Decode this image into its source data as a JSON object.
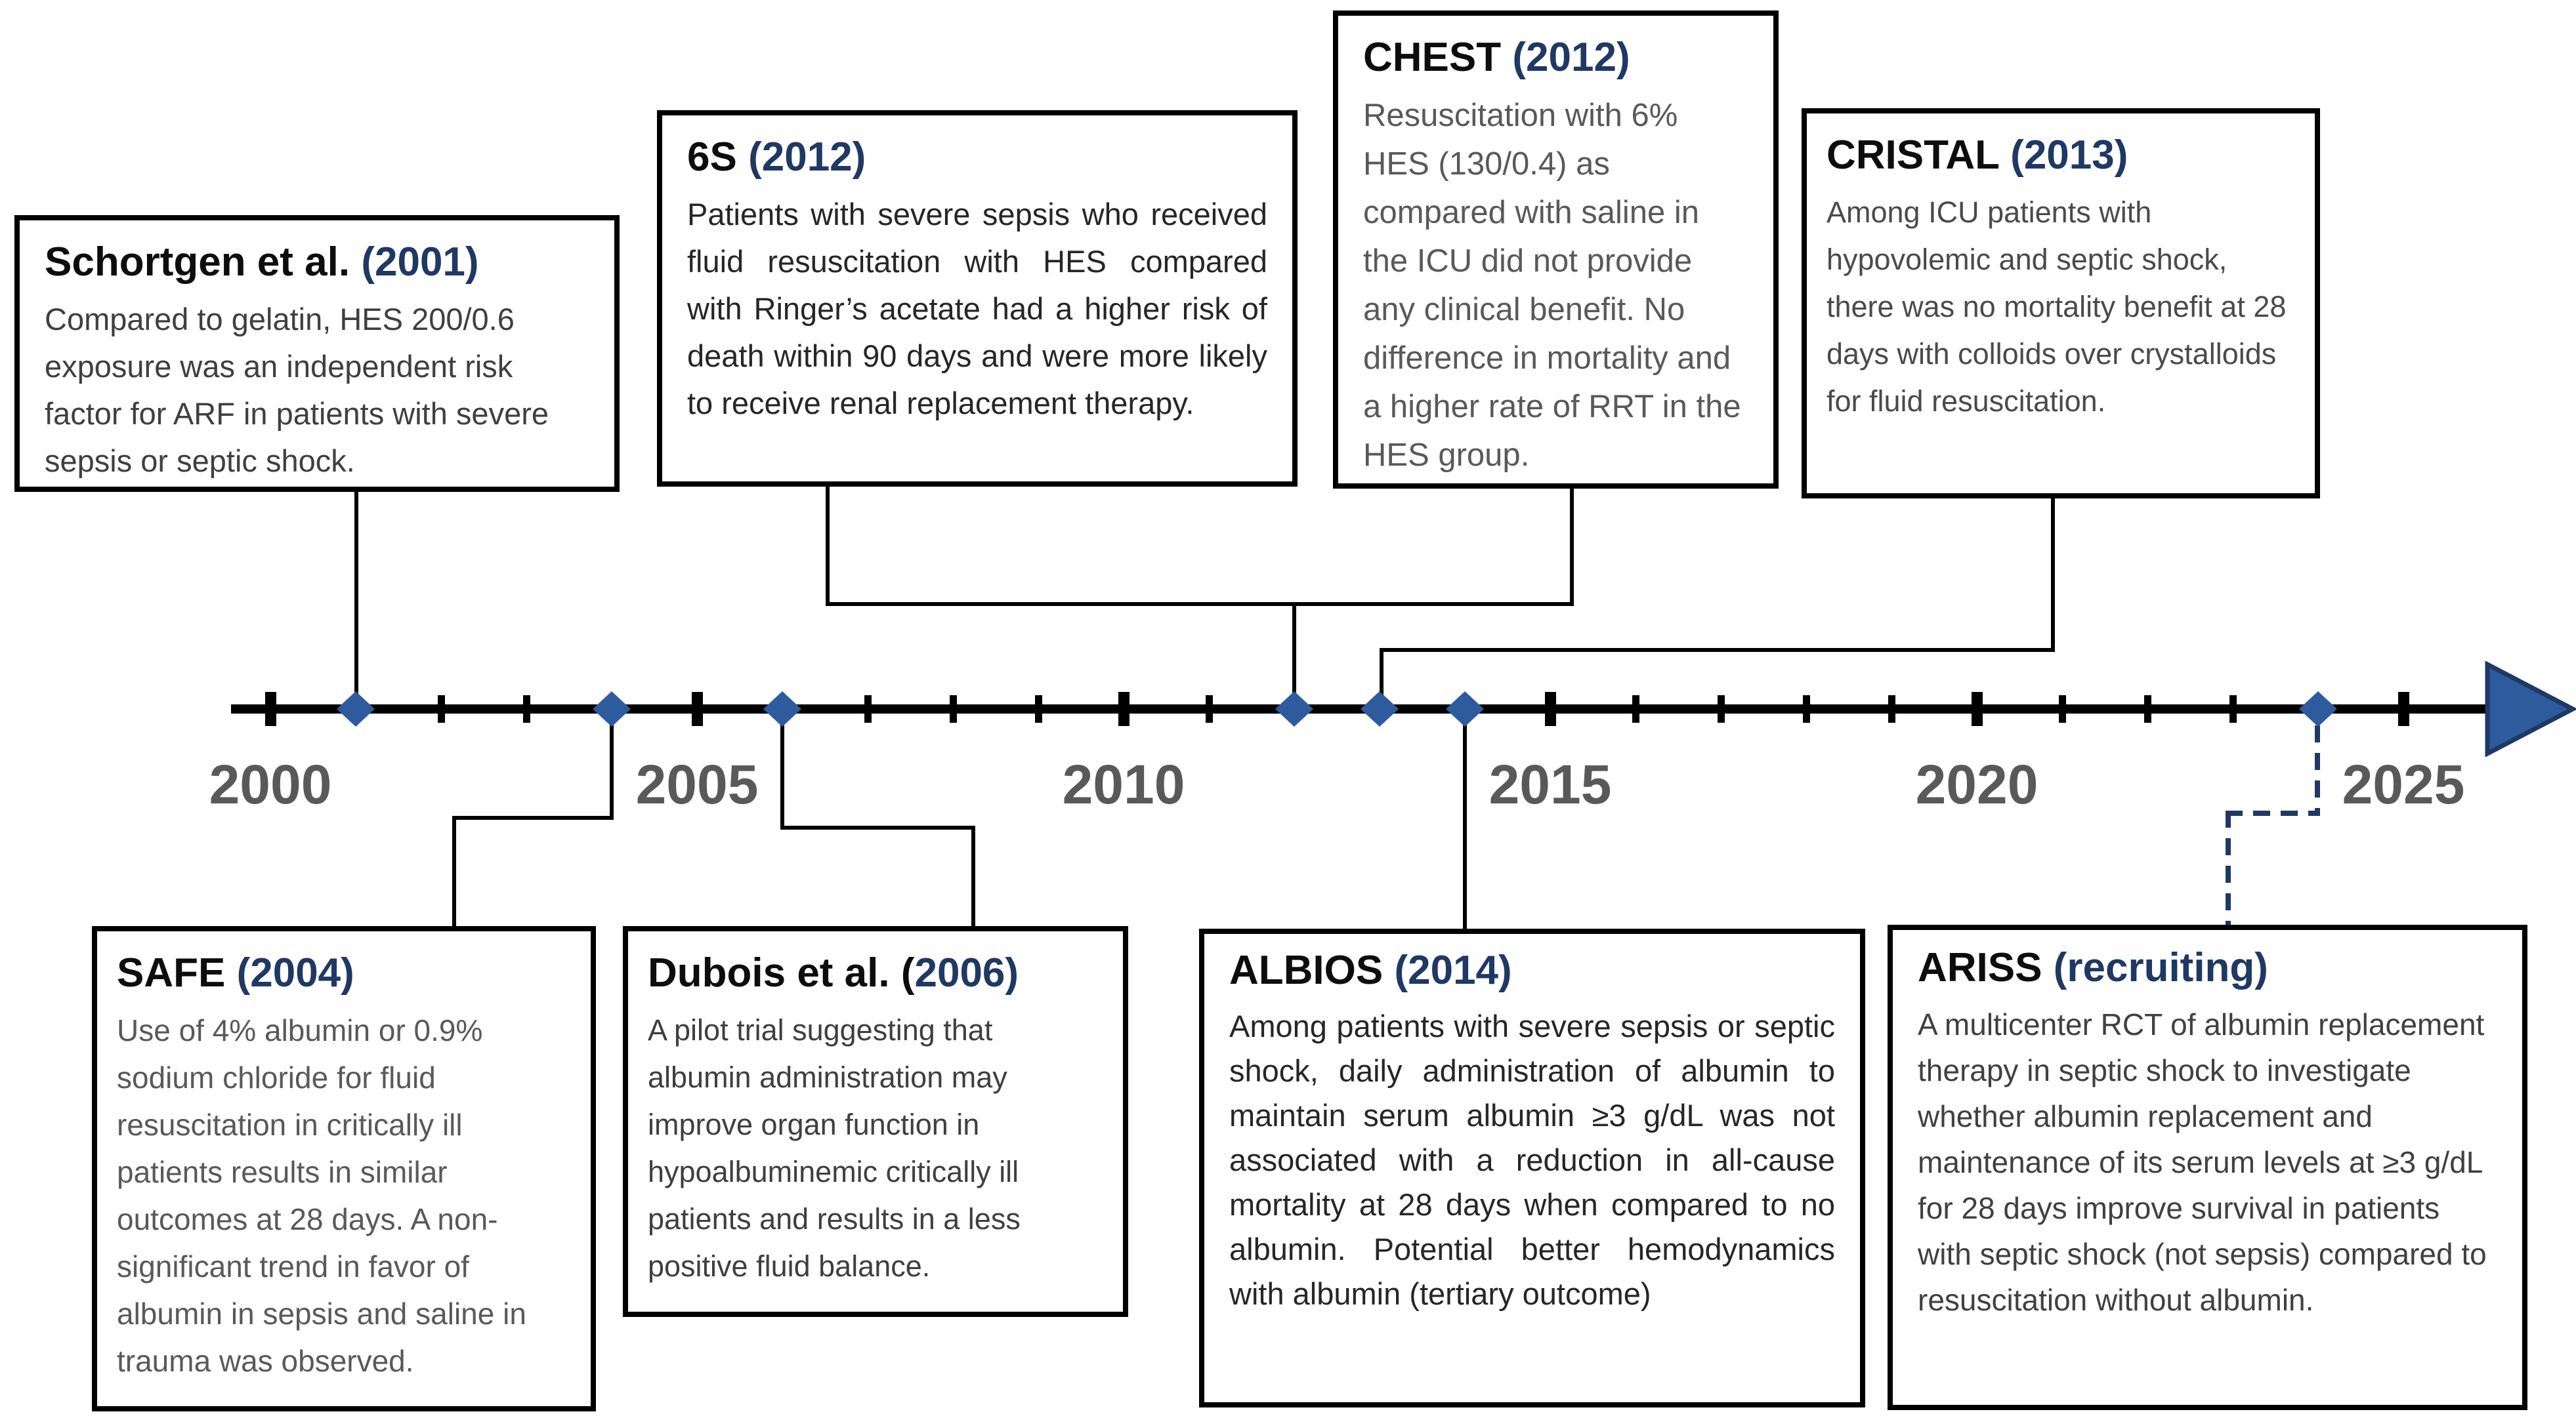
{
  "colors": {
    "navy": "#1f3864",
    "marker": "#2e5b9e",
    "axis": "#000000",
    "yeargray": "#595959"
  },
  "timeline": {
    "start_year": 2000,
    "end_year": 2025,
    "year_labels": [
      "2000",
      "2005",
      "2010",
      "2015",
      "2020",
      "2025"
    ],
    "marker_years": [
      2001,
      2004,
      2006,
      2012,
      2013,
      2014,
      2024
    ],
    "arrow_icon": "right-arrow"
  },
  "events": [
    {
      "id": "schortgen",
      "title": "Schortgen et al.",
      "year_label": "(2001)",
      "marker_year": 2001,
      "placement": "above",
      "body": "Compared to gelatin, HES 200/0.6 exposure was an independent risk factor for ARF in patients with severe sepsis or septic shock."
    },
    {
      "id": "sixs",
      "title": "6S",
      "year_label": "(2012)",
      "marker_year": 2012,
      "placement": "above",
      "body": "Patients with severe sepsis who received fluid resuscitation with HES compared with Ringer’s acetate had a higher risk of death within 90 days and were more likely to receive renal replacement therapy."
    },
    {
      "id": "chest",
      "title": "CHEST",
      "year_label": "(2012)",
      "marker_year": 2012,
      "placement": "above",
      "body": "Resuscitation with 6% HES (130/0.4) as compared with saline in the ICU did not provide any clinical benefit. No difference in mortality and a higher rate of RRT in the HES group."
    },
    {
      "id": "cristal",
      "title": "CRISTAL",
      "year_label": "(2013)",
      "marker_year": 2013,
      "placement": "above",
      "body": "Among ICU patients with hypovolemic and septic shock, there was no mortality benefit at 28 days with colloids over crystalloids for fluid resuscitation."
    },
    {
      "id": "safe",
      "title": "SAFE",
      "year_label": "(2004)",
      "marker_year": 2004,
      "placement": "below",
      "body": "Use of 4% albumin or 0.9% sodium chloride for fluid resuscitation in critically ill patients results in similar outcomes at 28 days. A non-significant trend in favor of albumin in sepsis and saline in trauma was observed."
    },
    {
      "id": "dubois",
      "title": "Dubois et al. (",
      "year_label": "2006)",
      "marker_year": 2006,
      "placement": "below",
      "body": "A pilot trial suggesting that albumin administration may improve organ function in hypoalbuminemic critically ill patients and results in a less positive fluid balance."
    },
    {
      "id": "albios",
      "title": "ALBIOS",
      "year_label": "(2014)",
      "marker_year": 2014,
      "placement": "below",
      "body": "Among patients with severe sepsis or septic shock, daily administration of albumin to maintain serum albumin ≥3 g/dL was not associated with a reduction in all-cause mortality at 28 days when compared to no albumin. Potential better hemodynamics with albumin (tertiary outcome)"
    },
    {
      "id": "ariss",
      "title": "ARISS",
      "year_label": "(recruiting)",
      "marker_year": 2024,
      "placement": "below",
      "body": "A multicenter RCT of albumin replacement therapy in septic shock to investigate whether albumin replacement and maintenance of its serum levels at ≥3 g/dL for 28 days improve survival in patients with septic shock (not sepsis) compared to resuscitation without albumin."
    }
  ]
}
